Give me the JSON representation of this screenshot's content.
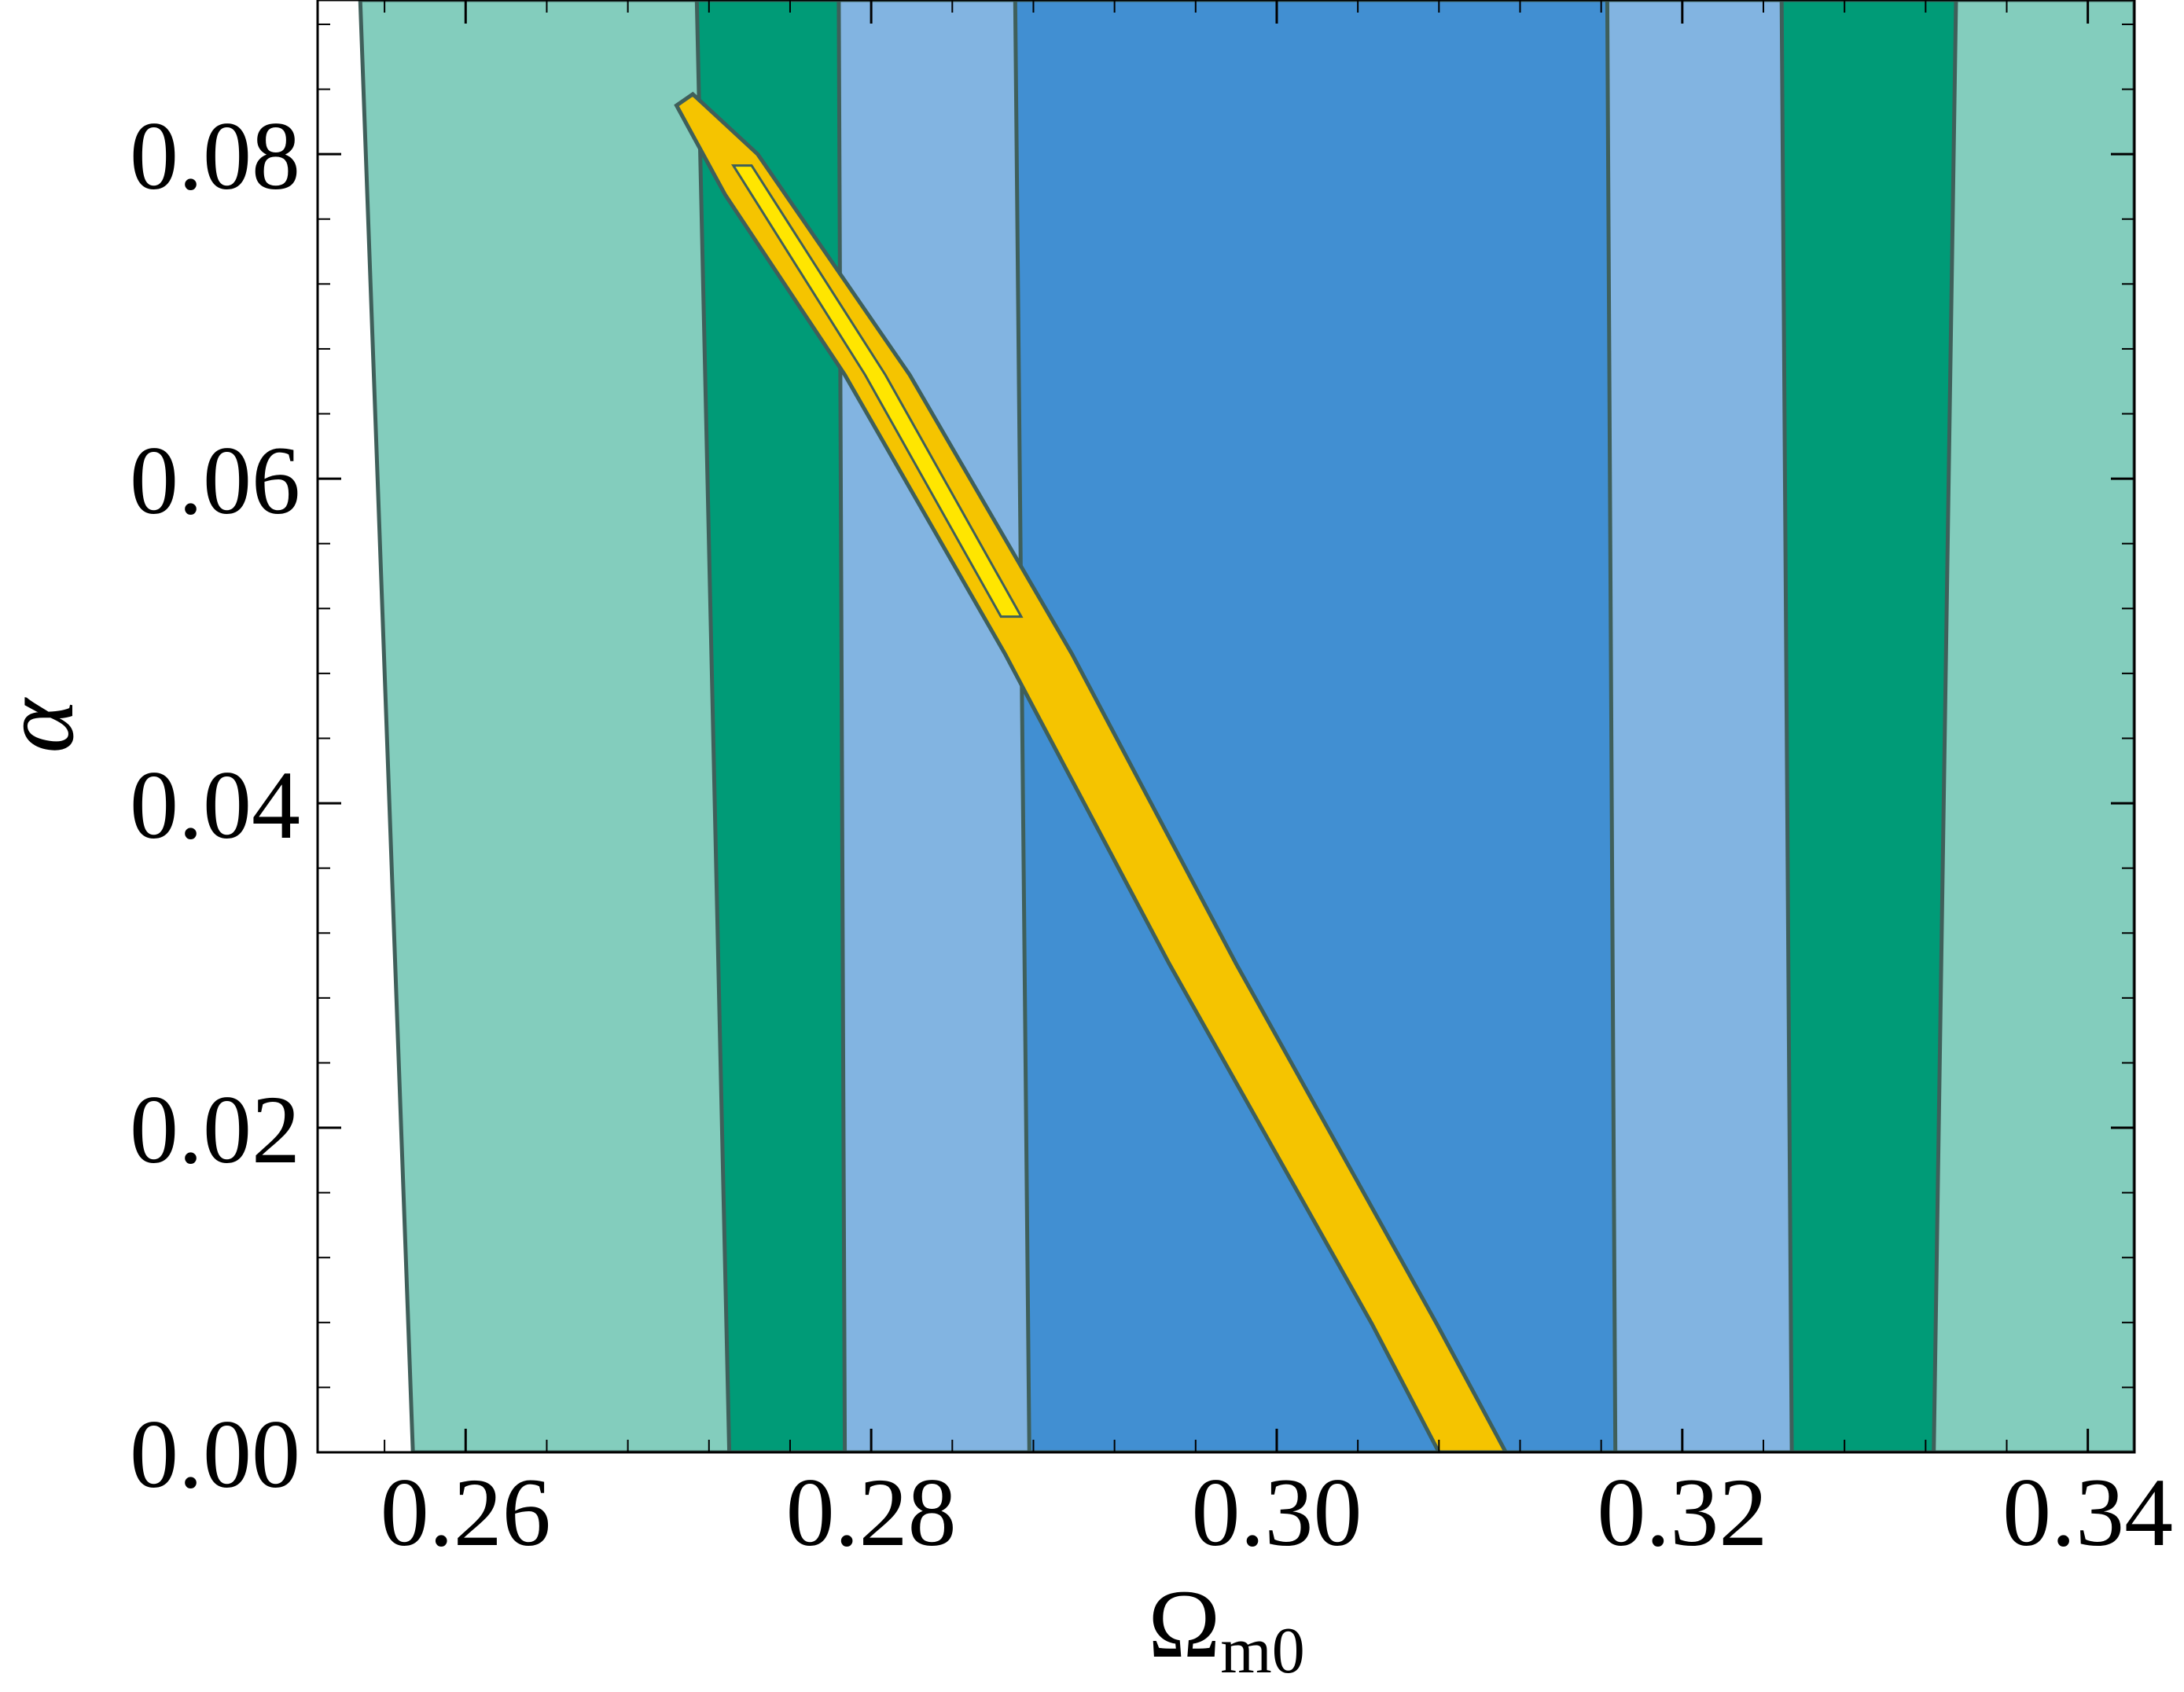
{
  "chart_data": {
    "type": "contour",
    "xlabel": "Ω",
    "xlabel_sub": "m0",
    "ylabel": "α",
    "xlim": [
      0.2527,
      0.3423
    ],
    "ylim": [
      0.0,
      0.0895
    ],
    "xticks": [
      0.26,
      0.28,
      0.3,
      0.32,
      0.34
    ],
    "xtick_labels": [
      "0.26",
      "0.28",
      "0.30",
      "0.32",
      "0.34"
    ],
    "yticks": [
      0.0,
      0.02,
      0.04,
      0.06,
      0.08
    ],
    "ytick_labels": [
      "0.00",
      "0.02",
      "0.04",
      "0.06",
      "0.08"
    ],
    "grid": false,
    "legend": "none",
    "colors": {
      "green_outer": "#83CDBD",
      "green_inner": "#009B77",
      "blue_outer": "#82B4E1",
      "blue_inner": "#418FD2",
      "yellow_outer": "#F5C400",
      "yellow_inner": "#FFE600",
      "contour_line": "#3F5F5A"
    },
    "contours": [
      {
        "name": "green-outer",
        "fill": "green_outer",
        "left": [
          [
            0.2548,
            0.0895
          ],
          [
            0.2574,
            0.0
          ]
        ],
        "right": [
          [
            0.3423,
            0.0895
          ],
          [
            0.3423,
            0.0
          ]
        ]
      },
      {
        "name": "green-inner",
        "fill": "green_inner",
        "left": [
          [
            0.2714,
            0.0895
          ],
          [
            0.273,
            0.0
          ]
        ],
        "right": [
          [
            0.3335,
            0.0895
          ],
          [
            0.3324,
            0.0
          ]
        ]
      },
      {
        "name": "blue-outer",
        "fill": "blue_outer",
        "left": [
          [
            0.2784,
            0.0895
          ],
          [
            0.2787,
            0.0
          ]
        ],
        "right": [
          [
            0.3249,
            0.0895
          ],
          [
            0.3254,
            0.0
          ]
        ]
      },
      {
        "name": "blue-inner",
        "fill": "blue_inner",
        "left": [
          [
            0.2871,
            0.0895
          ],
          [
            0.2878,
            0.0
          ]
        ],
        "right": [
          [
            0.3163,
            0.0895
          ],
          [
            0.3167,
            0.0
          ]
        ]
      }
    ],
    "yellow_band": {
      "outer": {
        "fill": "yellow_outer",
        "left": [
          [
            0.2704,
            0.083
          ],
          [
            0.2728,
            0.0775
          ],
          [
            0.2787,
            0.0664
          ],
          [
            0.2866,
            0.0492
          ],
          [
            0.2947,
            0.0301
          ],
          [
            0.3047,
            0.0079
          ],
          [
            0.308,
            0.0
          ]
        ],
        "right": [
          [
            0.3113,
            0.0
          ],
          [
            0.3079,
            0.0079
          ],
          [
            0.298,
            0.0301
          ],
          [
            0.2899,
            0.0492
          ],
          [
            0.2819,
            0.0664
          ],
          [
            0.2744,
            0.08
          ],
          [
            0.2712,
            0.0837
          ]
        ]
      },
      "inner": {
        "fill": "yellow_inner",
        "left": [
          [
            0.2732,
            0.0793
          ],
          [
            0.2797,
            0.0664
          ],
          [
            0.2864,
            0.0515
          ]
        ],
        "right": [
          [
            0.2874,
            0.0515
          ],
          [
            0.2807,
            0.0664
          ],
          [
            0.2741,
            0.0793
          ]
        ]
      }
    }
  }
}
